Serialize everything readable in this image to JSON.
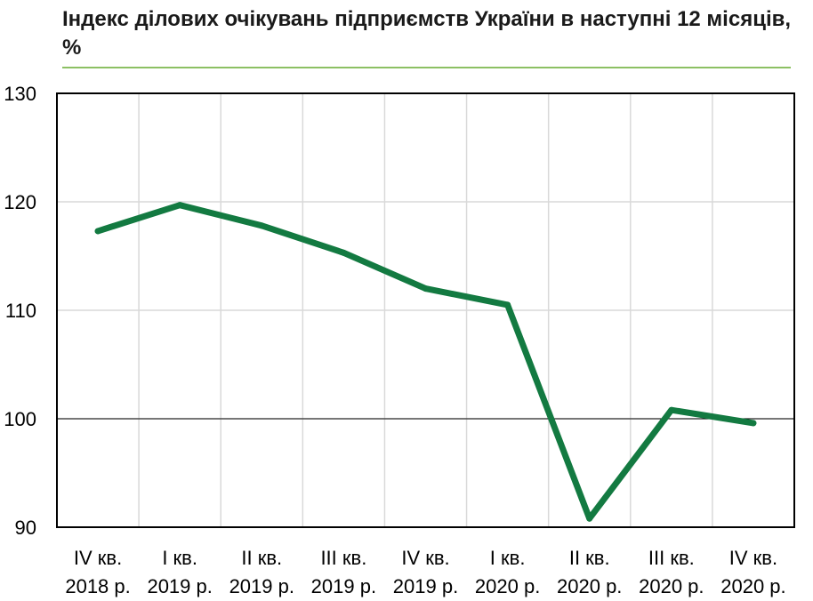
{
  "chart_data": {
    "type": "line",
    "title": "Індекс ділових очікувань підприємств України в наступні 12 місяців, %",
    "xlabel": "",
    "ylabel": "",
    "ylim": [
      90,
      130
    ],
    "yticks": [
      90,
      100,
      110,
      120,
      130
    ],
    "grid": true,
    "reference_line": 100,
    "categories": [
      [
        "IV кв.",
        "2018 р."
      ],
      [
        "I кв.",
        "2019 р."
      ],
      [
        "II кв.",
        "2019 р."
      ],
      [
        "III кв.",
        "2019 р."
      ],
      [
        "IV кв.",
        "2019 р."
      ],
      [
        "I кв.",
        "2020 р."
      ],
      [
        "II кв.",
        "2020 р."
      ],
      [
        "III кв.",
        "2020 р."
      ],
      [
        "IV кв.",
        "2020 р."
      ]
    ],
    "series": [
      {
        "values": [
          117.3,
          119.7,
          117.8,
          115.3,
          112.0,
          110.5,
          90.8,
          100.8,
          99.6
        ]
      }
    ],
    "colors": {
      "line": "#137a41",
      "grid": "#d9d9d9",
      "axis": "#000000",
      "rule": "#8cc063"
    }
  }
}
